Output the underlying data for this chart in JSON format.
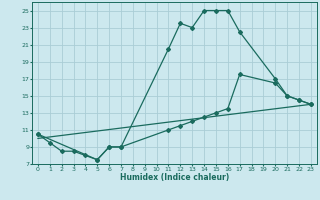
{
  "title": "",
  "xlabel": "Humidex (Indice chaleur)",
  "background_color": "#cce8ee",
  "grid_color": "#aacdd6",
  "line_color": "#1a6b5e",
  "xlim": [
    -0.5,
    23.5
  ],
  "ylim": [
    7,
    26
  ],
  "xticks": [
    0,
    1,
    2,
    3,
    4,
    5,
    6,
    7,
    8,
    9,
    10,
    11,
    12,
    13,
    14,
    15,
    16,
    17,
    18,
    19,
    20,
    21,
    22,
    23
  ],
  "yticks": [
    7,
    9,
    11,
    13,
    15,
    17,
    19,
    21,
    23,
    25
  ],
  "line1_x": [
    0,
    1,
    2,
    3,
    4,
    5,
    6,
    7,
    11,
    12,
    13,
    14,
    15,
    16,
    17,
    20,
    21,
    22,
    23
  ],
  "line1_y": [
    10.5,
    9.5,
    8.5,
    8.5,
    8.0,
    7.5,
    9.0,
    9.0,
    20.5,
    23.5,
    23.0,
    25.0,
    25.0,
    25.0,
    22.5,
    17.0,
    15.0,
    14.5,
    14.0
  ],
  "line2_x": [
    0,
    5,
    6,
    7,
    11,
    12,
    13,
    14,
    15,
    16,
    17,
    20,
    21,
    22,
    23
  ],
  "line2_y": [
    10.5,
    7.5,
    9.0,
    9.0,
    11.0,
    11.5,
    12.0,
    12.5,
    13.0,
    13.5,
    17.5,
    16.5,
    15.0,
    14.5,
    14.0
  ],
  "line3_x": [
    0,
    23
  ],
  "line3_y": [
    10.0,
    14.0
  ]
}
